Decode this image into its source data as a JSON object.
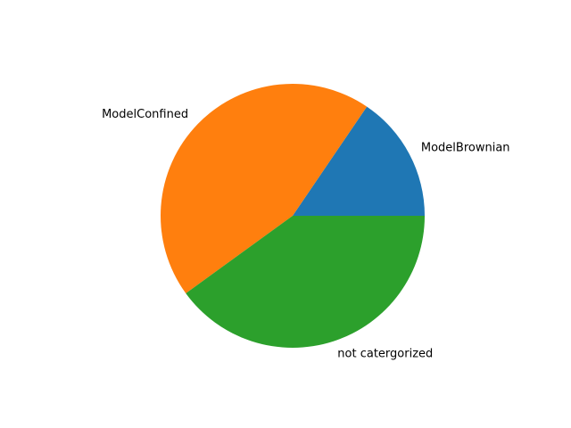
{
  "chart_data": {
    "type": "pie",
    "title": "",
    "labels": [
      "ModelBrownian",
      "ModelConfined",
      "not catergorized"
    ],
    "values": [
      15.5,
      44.5,
      40.0
    ],
    "colors": [
      "#1f77b4",
      "#ff7f0e",
      "#2ca02c"
    ],
    "start_angle": 0,
    "direction": "counterclockwise",
    "legend": "none"
  }
}
